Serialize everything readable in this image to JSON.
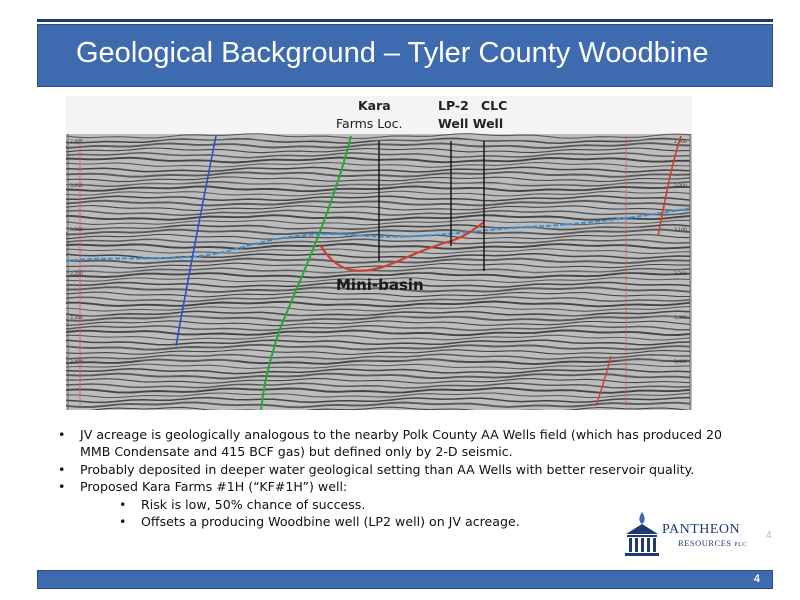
{
  "header": {
    "title": "Geological Background – Tyler County Woodbine"
  },
  "seismic": {
    "labels": {
      "kara": "Kara",
      "kara_loc": "Farms Loc.",
      "lp2": "LP-2",
      "clc": "CLC",
      "well_well": "Well Well",
      "mini_basin": "Mini-basin"
    },
    "left_axis_ticks": [
      "2,900",
      "3,000",
      "3,100",
      "3,200",
      "3,300",
      "3,400"
    ],
    "right_axis_ticks": [
      "2,900",
      "3,000",
      "3,100",
      "3,200",
      "3,300",
      "3,400"
    ],
    "colors": {
      "blue_horizon": "#3a8fd6",
      "red_horizon": "#d23b32",
      "green_fault": "#2aa33a",
      "blue_fault": "#2b4fc4"
    }
  },
  "bullets": [
    "JV acreage is geologically analogous to the nearby Polk County AA Wells field (which has produced 20 MMB Condensate and 415 BCF gas) but defined only by 2-D seismic.",
    "Probably deposited in deeper water geological setting than AA Wells with better reservoir quality.",
    "Proposed Kara Farms #1H (“KF#1H”) well:"
  ],
  "sub_bullets": [
    "Risk is low,  50% chance of success.",
    "Offsets a producing Woodbine well (LP2 well) on JV acreage."
  ],
  "logo": {
    "name": "PANTHEON",
    "sub": "RESOURCES",
    "suffix": "PLC",
    "corner_num": "4"
  },
  "footer": {
    "page_number": "4"
  },
  "bullet_glyph": "•"
}
